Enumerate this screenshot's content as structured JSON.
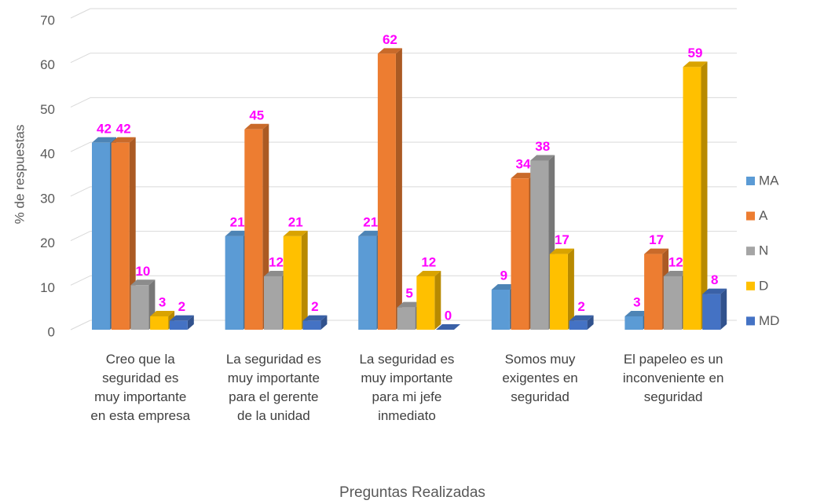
{
  "chart_data": {
    "type": "bar3d",
    "y_axis_label": "% de respuestas",
    "x_axis_label": "Preguntas Realizadas",
    "categories": [
      "Creo que la seguridad es muy importante en esta empresa",
      "La seguridad es muy importante para el gerente de la unidad",
      "La seguridad es muy importante para mi jefe inmediato",
      "Somos muy exigentes en seguridad",
      "El papeleo es un inconveniente en seguridad"
    ],
    "series": [
      {
        "name": "MA",
        "color": "#5b9bd5",
        "values": [
          42,
          21,
          21,
          9,
          3
        ]
      },
      {
        "name": "A",
        "color": "#ed7d31",
        "values": [
          42,
          45,
          62,
          34,
          17
        ]
      },
      {
        "name": "N",
        "color": "#a5a5a5",
        "values": [
          10,
          12,
          5,
          38,
          12
        ]
      },
      {
        "name": "D",
        "color": "#ffc000",
        "values": [
          3,
          21,
          12,
          17,
          59
        ]
      },
      {
        "name": "MD",
        "color": "#4472c4",
        "values": [
          2,
          2,
          0,
          2,
          8
        ]
      }
    ],
    "ylim": [
      0,
      70
    ],
    "yticks": [
      0,
      10,
      20,
      30,
      40,
      50,
      60,
      70
    ],
    "grid": true,
    "legend": "right",
    "label_color": "#ff00ff"
  }
}
